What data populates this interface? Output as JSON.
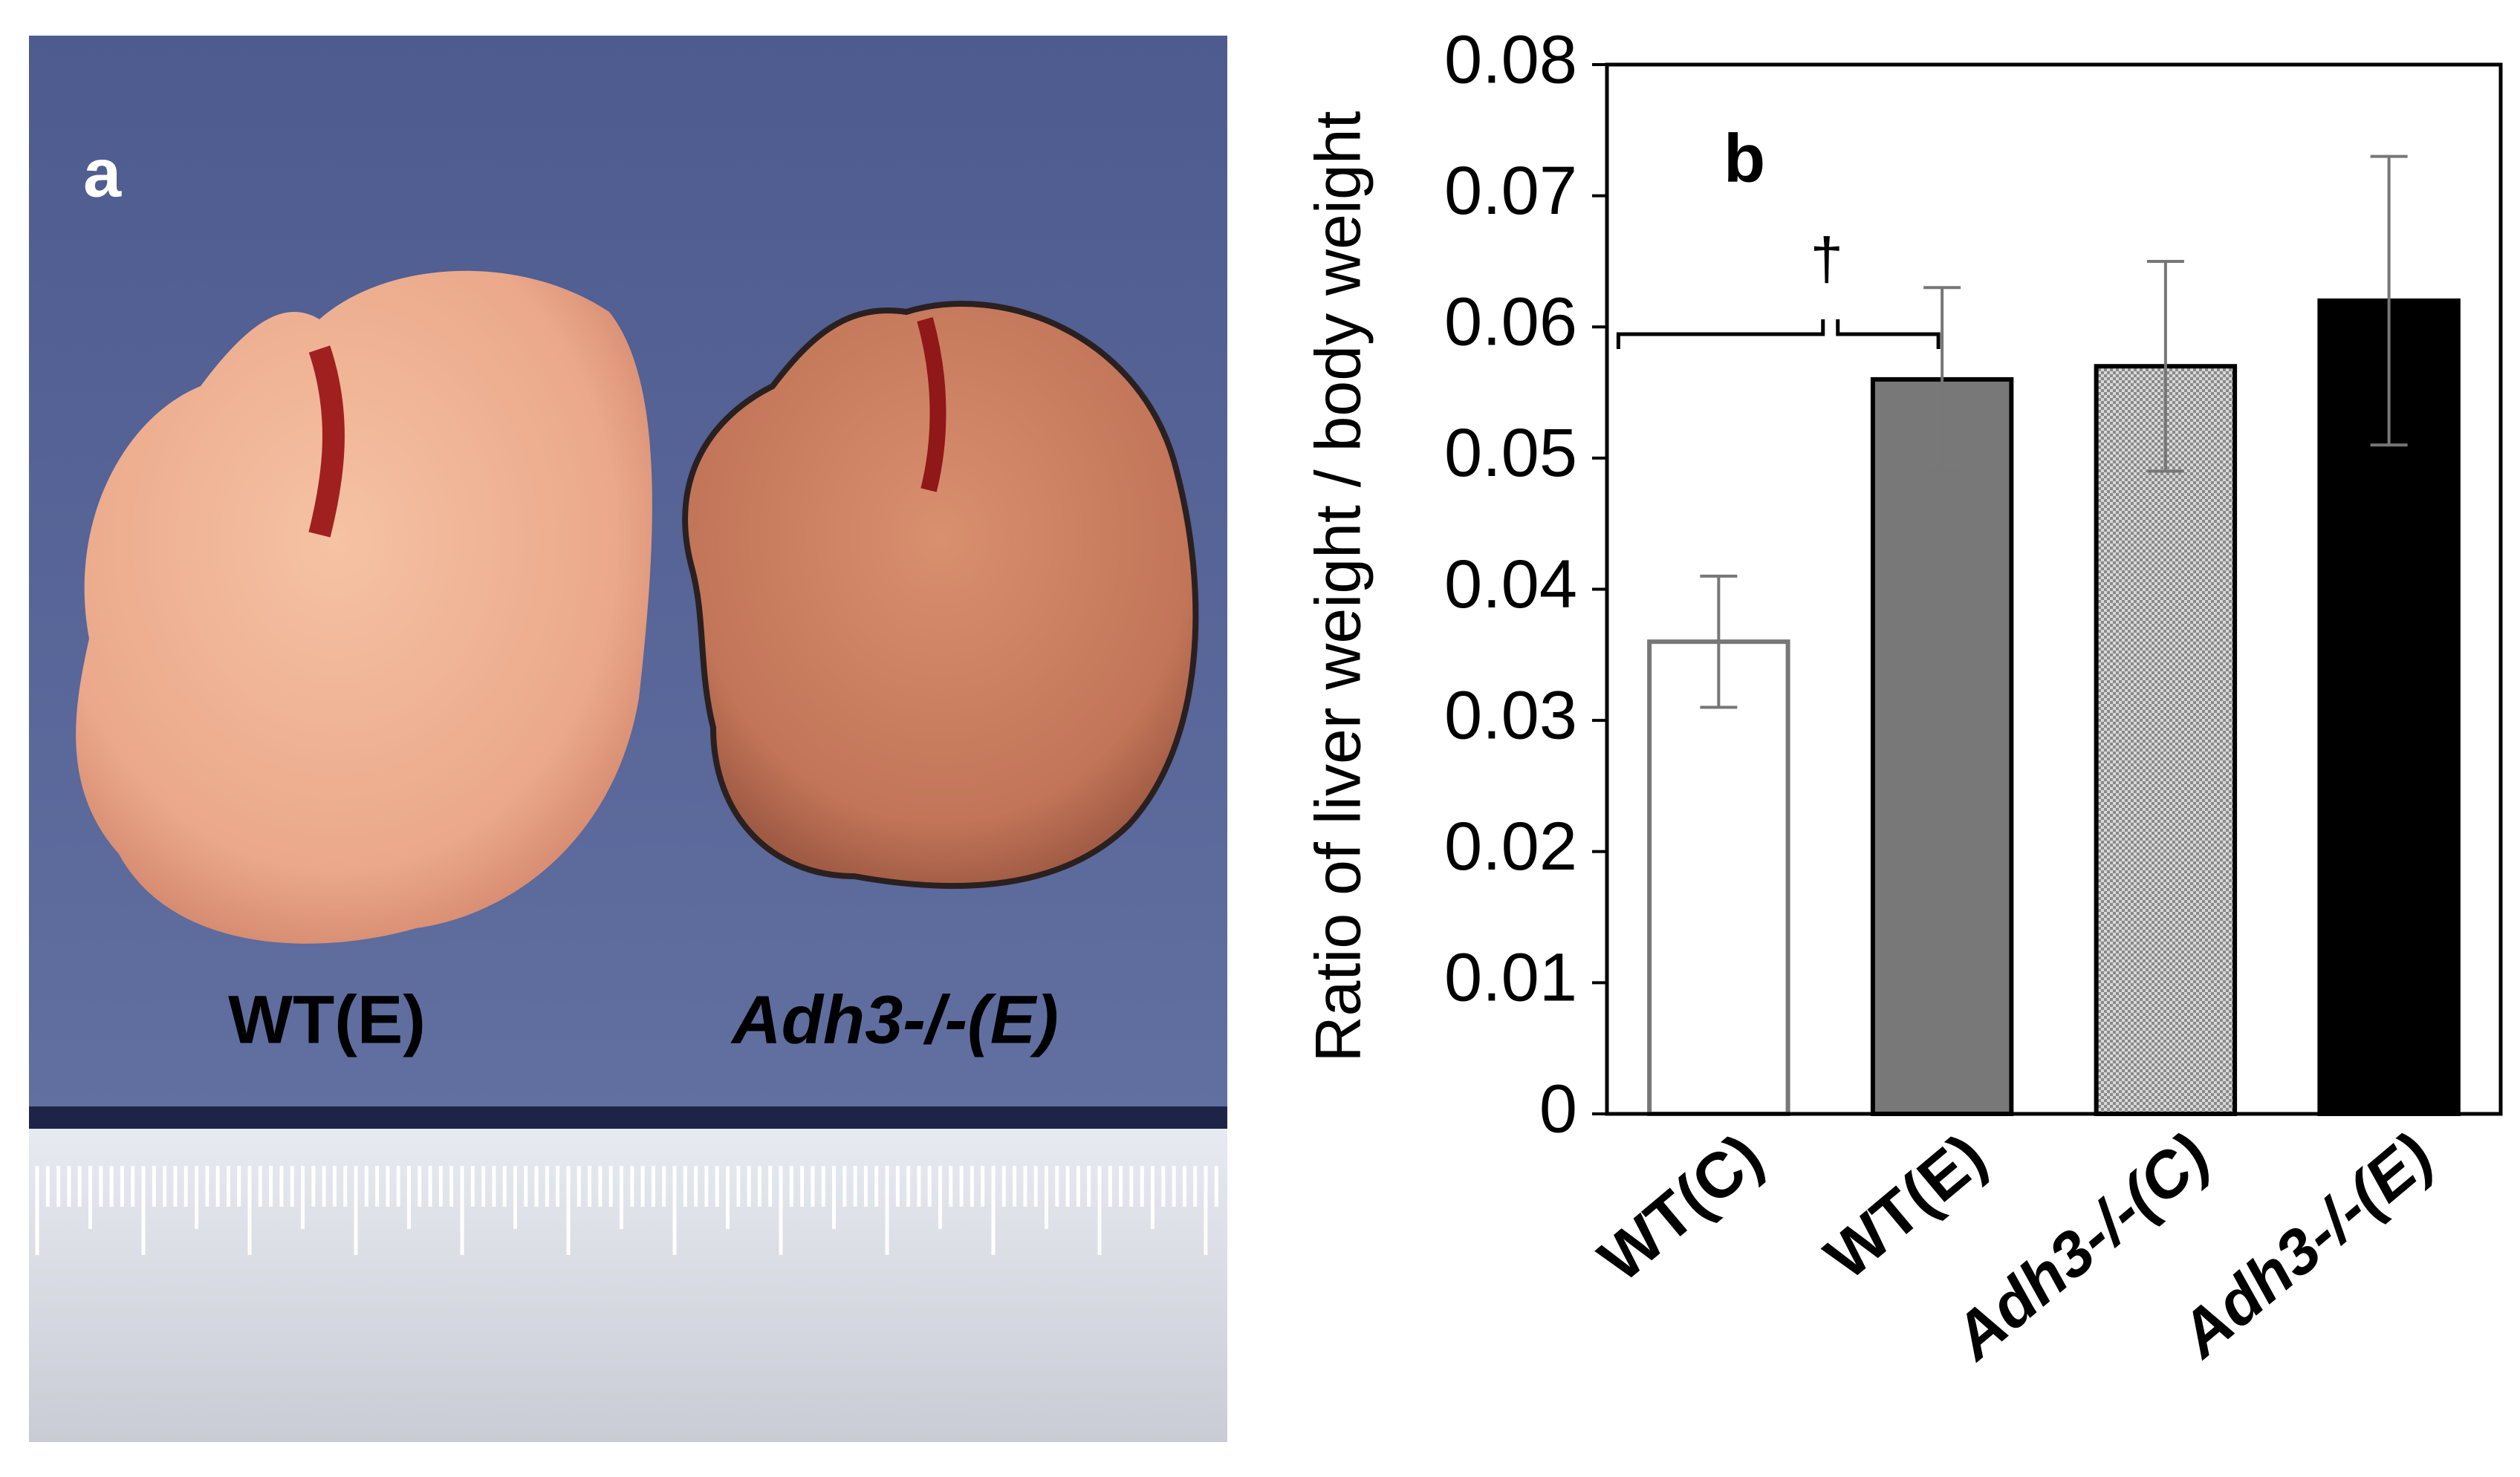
{
  "photo": {
    "panel_label": "a",
    "labels": [
      "WT(E)",
      "Adh3-/-(E)"
    ]
  },
  "chart_data": {
    "type": "bar",
    "panel_label": "b",
    "y_label": "Ratio of liver weight / body weight",
    "categories": [
      "WT(C)",
      "WT(E)",
      "Adh3-/-(C)",
      "Adh3-/-(E)"
    ],
    "values": [
      0.036,
      0.056,
      0.057,
      0.062
    ],
    "errors": [
      0.005,
      0.007,
      0.008,
      0.011
    ],
    "colors": [
      "#ffffff",
      "#787878",
      "pattern",
      "#000000"
    ],
    "ylim": [
      0,
      0.08
    ],
    "yticks": [
      0,
      0.01,
      0.02,
      0.03,
      0.04,
      0.05,
      0.06,
      0.07,
      0.08
    ],
    "annotation": "†"
  }
}
